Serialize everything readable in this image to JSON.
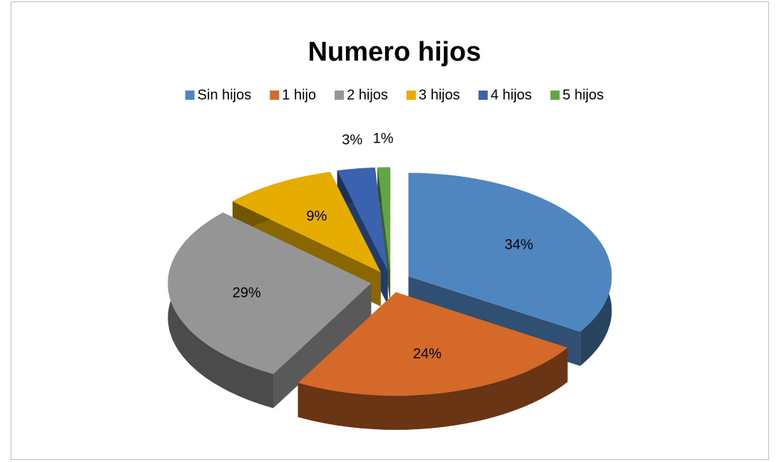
{
  "chart_data": {
    "type": "pie",
    "title": "Numero hijos",
    "categories": [
      "Sin hijos",
      "1 hijo",
      "2 hijos",
      "3 hijos",
      "4 hijos",
      "5 hijos"
    ],
    "values": [
      34,
      24,
      29,
      9,
      3,
      1
    ],
    "value_labels": [
      "34%",
      "24%",
      "29%",
      "9%",
      "3%",
      "1%"
    ],
    "colors": [
      "#4f86c0",
      "#d4692a",
      "#959595",
      "#e6ac00",
      "#3a62ae",
      "#63a446"
    ],
    "legend": "top"
  }
}
